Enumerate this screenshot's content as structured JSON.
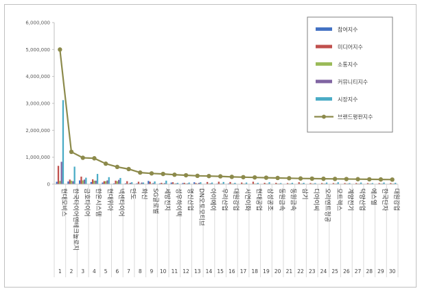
{
  "chart_data": {
    "type": "bar",
    "ylim": [
      0,
      6000000
    ],
    "ytick_labels": [
      "0",
      "1,000,000",
      "2,000,000",
      "3,000,000",
      "4,000,000",
      "5,000,000",
      "6,000,000"
    ],
    "yticks": [
      0,
      1000000,
      2000000,
      3000000,
      4000000,
      5000000,
      6000000
    ],
    "grid": false,
    "legend_position": "top-right",
    "categories": [
      "현대모비스",
      "한국타이어앤테크놀로지",
      "금호타이어",
      "한온시스템",
      "현대위아",
      "넥센타이어",
      "만도",
      "화신",
      "SG글로벌",
      "세방전지",
      "성우하이텍",
      "명신산업",
      "DN오토모티브",
      "아이에이",
      "우리산업",
      "대원강업",
      "서연이화",
      "현대공업",
      "삼성공조",
      "동원금속",
      "동원금속",
      "삼기",
      "디아이씨",
      "오리엔트정공",
      "모트렉스",
      "계양전기",
      "덕양산업",
      "에스엘",
      "한국단자",
      "대원강업"
    ],
    "indices": [
      "1",
      "2",
      "3",
      "4",
      "5",
      "6",
      "7",
      "8",
      "9",
      "10",
      "11",
      "12",
      "13",
      "14",
      "15",
      "16",
      "17",
      "18",
      "19",
      "20",
      "21",
      "22",
      "23",
      "24",
      "25",
      "26",
      "27",
      "28",
      "29",
      "30"
    ],
    "series": [
      {
        "name": "참여지수",
        "color": "#4472c4",
        "values": [
          90000,
          100000,
          140000,
          80000,
          60000,
          30000,
          30000,
          30000,
          120000,
          30000,
          60000,
          40000,
          70000,
          15000,
          20000,
          25000,
          10000,
          10000,
          10000,
          10000,
          10000,
          10000,
          10000,
          10000,
          10000,
          10000,
          10000,
          10000,
          10000,
          10000
        ]
      },
      {
        "name": "미디어지수",
        "color": "#c0504d",
        "values": [
          680000,
          170000,
          280000,
          180000,
          110000,
          130000,
          110000,
          90000,
          90000,
          50000,
          70000,
          50000,
          40000,
          80000,
          90000,
          80000,
          60000,
          90000,
          50000,
          50000,
          40000,
          70000,
          40000,
          40000,
          40000,
          40000,
          40000,
          40000,
          40000,
          40000
        ]
      },
      {
        "name": "소통지수",
        "color": "#9bbb59",
        "values": [
          120000,
          130000,
          140000,
          130000,
          110000,
          110000,
          20000,
          20000,
          20000,
          20000,
          20000,
          20000,
          20000,
          20000,
          20000,
          20000,
          20000,
          20000,
          20000,
          20000,
          20000,
          20000,
          20000,
          20000,
          20000,
          20000,
          20000,
          20000,
          20000,
          20000
        ]
      },
      {
        "name": "커뮤니티지수",
        "color": "#8064a2",
        "values": [
          830000,
          110000,
          170000,
          130000,
          140000,
          160000,
          50000,
          60000,
          40000,
          40000,
          30000,
          30000,
          50000,
          30000,
          20000,
          20000,
          20000,
          20000,
          20000,
          20000,
          20000,
          20000,
          20000,
          20000,
          20000,
          20000,
          20000,
          20000,
          20000,
          20000
        ]
      },
      {
        "name": "시장지수",
        "color": "#4bacc6",
        "values": [
          3120000,
          650000,
          240000,
          380000,
          260000,
          230000,
          70000,
          60000,
          100000,
          130000,
          50000,
          60000,
          70000,
          60000,
          80000,
          50000,
          60000,
          50000,
          70000,
          40000,
          50000,
          50000,
          40000,
          60000,
          70000,
          40000,
          60000,
          40000,
          60000,
          50000
        ]
      }
    ],
    "line_series": {
      "name": "브랜드평판지수",
      "color": "#8c8a4b",
      "values": [
        5000000,
        1200000,
        980000,
        960000,
        760000,
        640000,
        560000,
        430000,
        400000,
        380000,
        350000,
        330000,
        310000,
        300000,
        290000,
        270000,
        260000,
        250000,
        240000,
        230000,
        220000,
        210000,
        205000,
        200000,
        195000,
        190000,
        185000,
        180000,
        175000,
        170000
      ]
    }
  }
}
